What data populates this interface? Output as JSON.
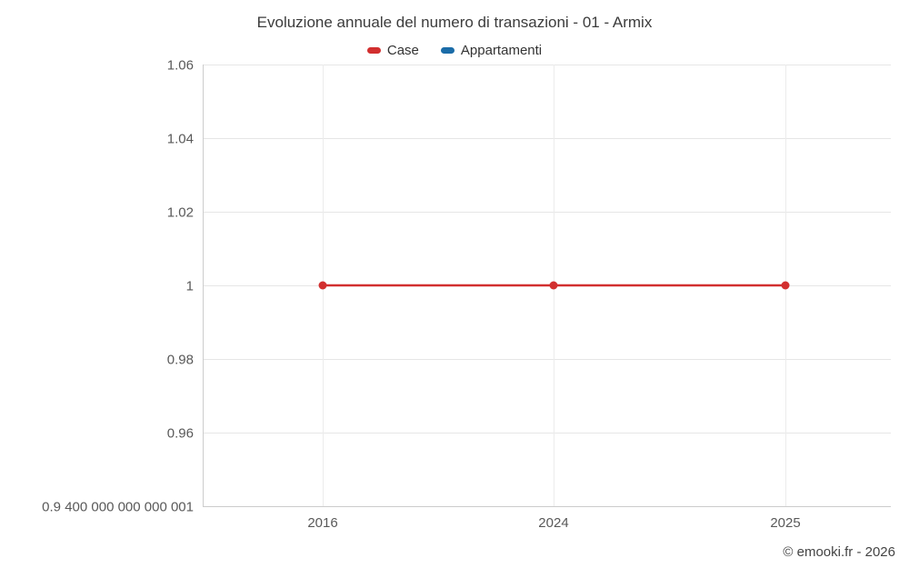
{
  "chart_data": {
    "type": "line",
    "title": "Evoluzione annuale del numero di transazioni - 01 - Armix",
    "x": [
      "2016",
      "2024",
      "2025"
    ],
    "series": [
      {
        "name": "Case",
        "color": "#d22f2f",
        "values": [
          1,
          1,
          1
        ]
      },
      {
        "name": "Appartamenti",
        "color": "#1b6ca8",
        "values": []
      }
    ],
    "ylim": [
      0.94,
      1.06
    ],
    "yticks": [
      {
        "value": 1.06,
        "label": "1.06"
      },
      {
        "value": 1.04,
        "label": "1.04"
      },
      {
        "value": 1.02,
        "label": "1.02"
      },
      {
        "value": 1,
        "label": "1"
      },
      {
        "value": 0.98,
        "label": "0.98"
      },
      {
        "value": 0.96,
        "label": "0.96"
      },
      {
        "value": 0.94,
        "label": "0.9 400 000 000 000 001"
      }
    ],
    "grid": true,
    "legend_position": "top",
    "xlabel": "",
    "ylabel": ""
  },
  "legend": {
    "items": [
      {
        "label": "Case",
        "color": "#d22f2f"
      },
      {
        "label": "Appartamenti",
        "color": "#1b6ca8"
      }
    ]
  },
  "footer": {
    "copyright": "© emooki.fr - 2026"
  }
}
